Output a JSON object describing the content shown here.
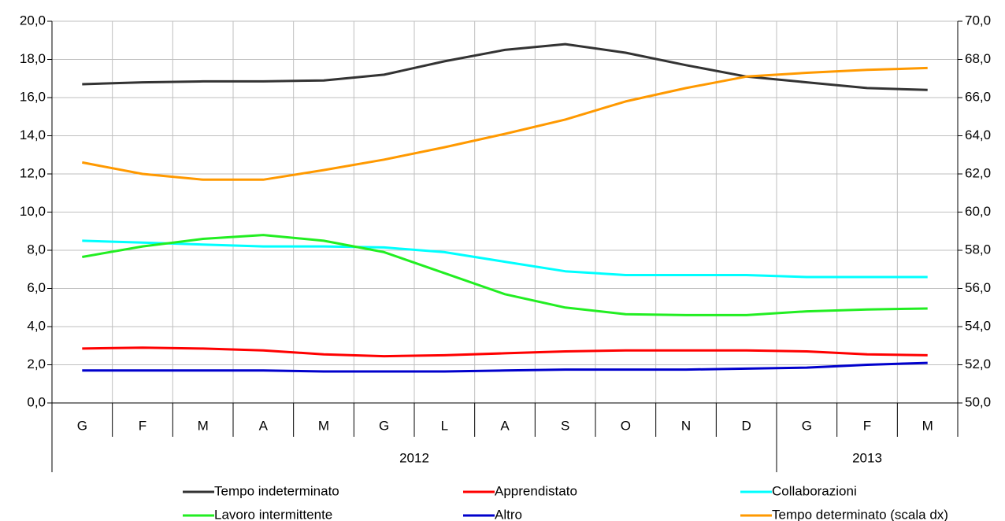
{
  "chart_data": {
    "type": "line",
    "categories": [
      "G",
      "F",
      "M",
      "A",
      "M",
      "G",
      "L",
      "A",
      "S",
      "O",
      "N",
      "D",
      "G",
      "F",
      "M"
    ],
    "groups": [
      {
        "label": "2012",
        "count": 12
      },
      {
        "label": "2013",
        "count": 3
      }
    ],
    "series": [
      {
        "name": "Tempo indeterminato",
        "color": "#333333",
        "values": [
          16.7,
          16.8,
          16.85,
          16.85,
          16.9,
          17.2,
          17.9,
          18.5,
          18.8,
          18.35,
          17.7,
          17.1,
          16.8,
          16.5,
          16.4
        ]
      },
      {
        "name": "Apprendistato",
        "color": "#ff0000",
        "values": [
          2.85,
          2.9,
          2.85,
          2.75,
          2.55,
          2.45,
          2.5,
          2.6,
          2.7,
          2.75,
          2.75,
          2.75,
          2.7,
          2.55,
          2.5
        ]
      },
      {
        "name": "Collaborazioni",
        "color": "#00ffff",
        "values": [
          8.5,
          8.4,
          8.3,
          8.2,
          8.2,
          8.15,
          7.9,
          7.4,
          6.9,
          6.7,
          6.7,
          6.7,
          6.6,
          6.6,
          6.6
        ]
      },
      {
        "name": "Lavoro intermittente",
        "color": "#22ee22",
        "values": [
          7.65,
          8.2,
          8.6,
          8.8,
          8.5,
          7.9,
          6.8,
          5.7,
          5.0,
          4.65,
          4.6,
          4.6,
          4.8,
          4.9,
          4.95
        ]
      },
      {
        "name": "Altro",
        "color": "#0000cc",
        "values": [
          1.7,
          1.7,
          1.7,
          1.7,
          1.65,
          1.65,
          1.65,
          1.7,
          1.75,
          1.75,
          1.75,
          1.8,
          1.85,
          2.0,
          2.1
        ]
      },
      {
        "name": "Tempo determinato (scala dx)",
        "color": "#ff9900",
        "axis": "y2",
        "values": [
          62.6,
          62.0,
          61.7,
          61.7,
          62.2,
          62.75,
          63.4,
          64.1,
          64.85,
          65.8,
          66.5,
          67.1,
          67.3,
          67.45,
          67.55
        ]
      }
    ],
    "ylim": [
      0,
      20
    ],
    "yticks": [
      {
        "value": 0,
        "label": "0,0"
      },
      {
        "value": 2,
        "label": "2,0"
      },
      {
        "value": 4,
        "label": "4,0"
      },
      {
        "value": 6,
        "label": "6,0"
      },
      {
        "value": 8,
        "label": "8,0"
      },
      {
        "value": 10,
        "label": "10,0"
      },
      {
        "value": 12,
        "label": "12,0"
      },
      {
        "value": 14,
        "label": "14,0"
      },
      {
        "value": 16,
        "label": "16,0"
      },
      {
        "value": 18,
        "label": "18,0"
      },
      {
        "value": 20,
        "label": "20,0"
      }
    ],
    "y2lim": [
      50,
      70
    ],
    "y2ticks": [
      {
        "value": 50,
        "label": "50,0"
      },
      {
        "value": 52,
        "label": "52,0"
      },
      {
        "value": 54,
        "label": "54,0"
      },
      {
        "value": 56,
        "label": "56,0"
      },
      {
        "value": 58,
        "label": "58,0"
      },
      {
        "value": 60,
        "label": "60,0"
      },
      {
        "value": 62,
        "label": "62,0"
      },
      {
        "value": 64,
        "label": "64,0"
      },
      {
        "value": 66,
        "label": "66,0"
      },
      {
        "value": 68,
        "label": "68,0"
      },
      {
        "value": 70,
        "label": "70,0"
      }
    ],
    "grid": true,
    "legend": "bottom"
  }
}
